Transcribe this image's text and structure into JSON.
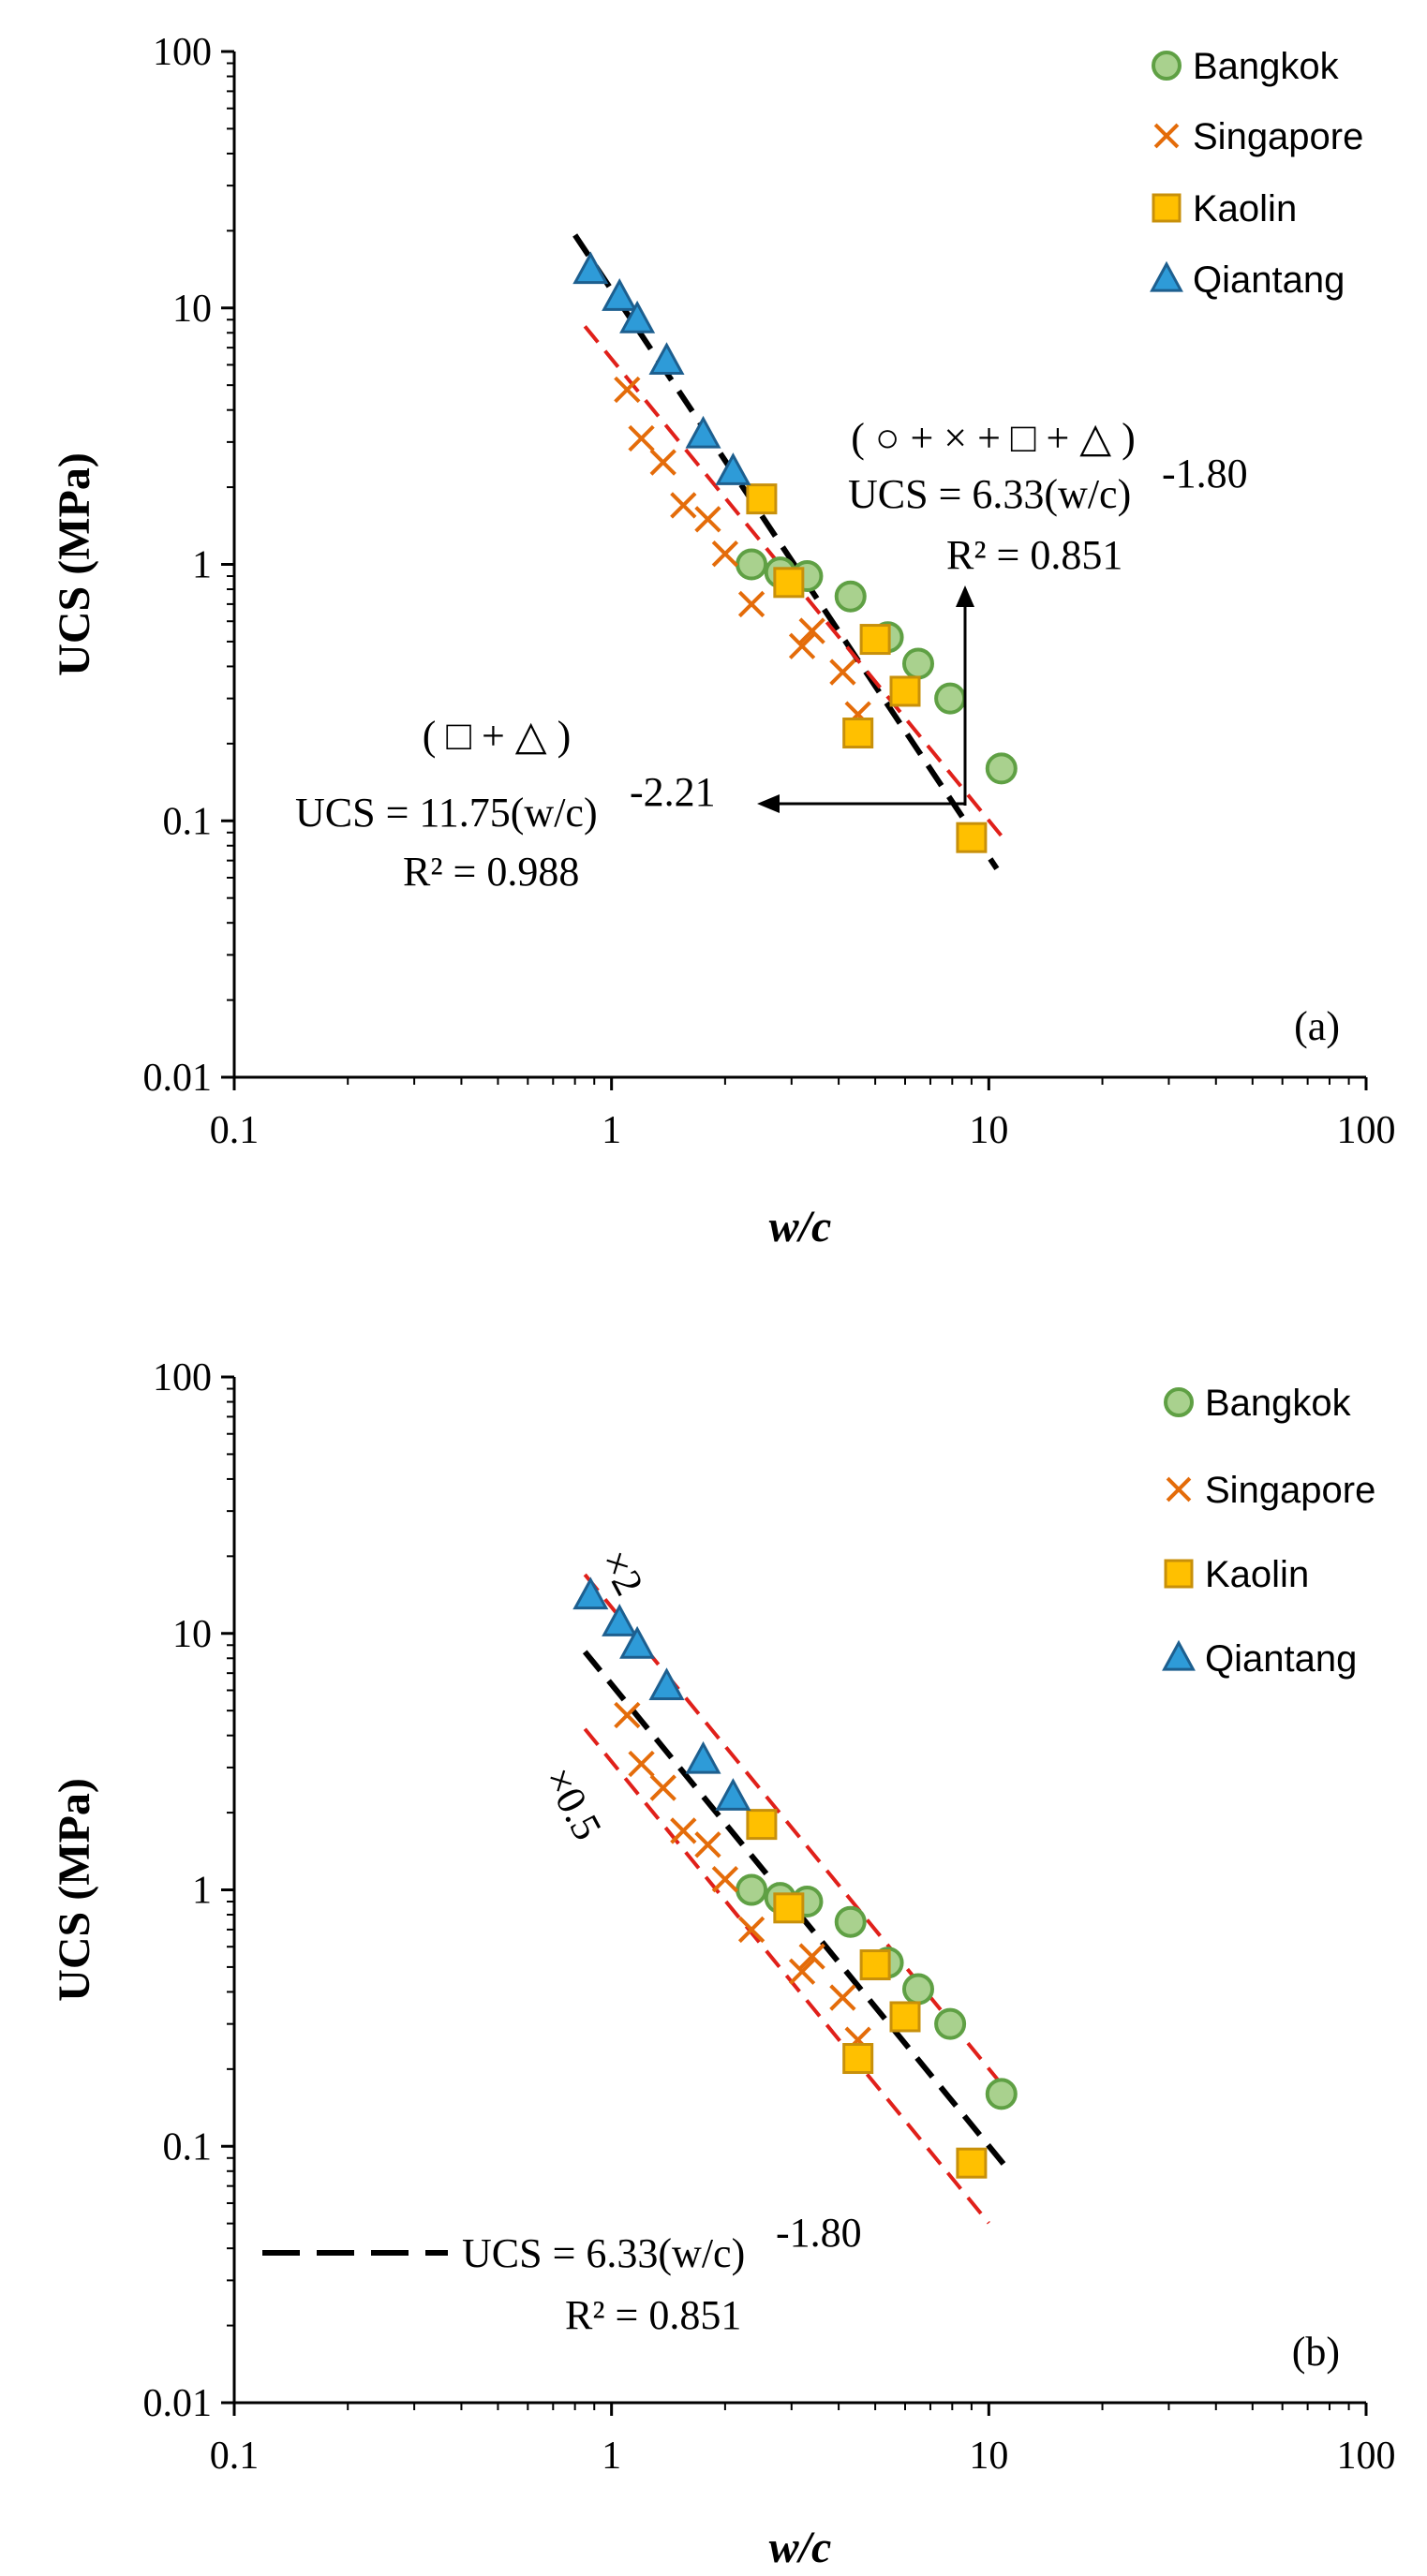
{
  "series_style": {
    "Bangkok": {
      "marker": "circle",
      "fill": "#a9d18e",
      "stroke": "#5fa044"
    },
    "Singapore": {
      "marker": "cross",
      "fill": "none",
      "stroke": "#e46c0a"
    },
    "Kaolin": {
      "marker": "square",
      "fill": "#ffc000",
      "stroke": "#c8900a"
    },
    "Qiantang": {
      "marker": "triangle",
      "fill": "#2e9bd8",
      "stroke": "#1d5f8f"
    }
  },
  "line_colors": {
    "fit": "#000000",
    "bound": "#e0201a"
  },
  "chart_data": [
    {
      "type": "scatter",
      "panel_label": "(a)",
      "x_scale": "log",
      "y_scale": "log",
      "xlim": [
        0.1,
        100
      ],
      "ylim": [
        0.01,
        100
      ],
      "xlabel": "w/c",
      "ylabel": "UCS (MPa)",
      "x_ticks": [
        "0.1",
        "1",
        "10",
        "100"
      ],
      "y_ticks": [
        "0.01",
        "0.1",
        "1",
        "10",
        "100"
      ],
      "grid": false,
      "legend_position": "top-right",
      "legend": [
        "Bangkok",
        "Singapore",
        "Kaolin",
        "Qiantang"
      ],
      "series": [
        {
          "name": "Bangkok",
          "points": [
            [
              2.35,
              1.0
            ],
            [
              2.8,
              0.93
            ],
            [
              3.3,
              0.9
            ],
            [
              4.3,
              0.75
            ],
            [
              5.4,
              0.52
            ],
            [
              6.5,
              0.41
            ],
            [
              7.9,
              0.3
            ],
            [
              10.8,
              0.16
            ]
          ]
        },
        {
          "name": "Singapore",
          "points": [
            [
              1.1,
              4.8
            ],
            [
              1.2,
              3.1
            ],
            [
              1.37,
              2.5
            ],
            [
              1.55,
              1.7
            ],
            [
              1.8,
              1.5
            ],
            [
              2.0,
              1.1
            ],
            [
              2.35,
              0.7
            ],
            [
              3.2,
              0.48
            ],
            [
              3.4,
              0.55
            ],
            [
              4.1,
              0.38
            ],
            [
              4.5,
              0.26
            ]
          ]
        },
        {
          "name": "Kaolin",
          "points": [
            [
              2.5,
              1.8
            ],
            [
              2.95,
              0.85
            ],
            [
              5.0,
              0.51
            ],
            [
              6.0,
              0.32
            ],
            [
              4.5,
              0.22
            ],
            [
              9.0,
              0.086
            ]
          ]
        },
        {
          "name": "Qiantang",
          "points": [
            [
              0.88,
              14.0
            ],
            [
              1.05,
              11.0
            ],
            [
              1.17,
              9.0
            ],
            [
              1.4,
              6.2
            ],
            [
              1.75,
              3.2
            ],
            [
              2.1,
              2.3
            ]
          ]
        }
      ],
      "fit_lines": [
        {
          "style": "black-dashed",
          "coef": 11.75,
          "exp": -2.21,
          "x_range": [
            0.8,
            10.5
          ]
        },
        {
          "style": "red-dashed",
          "coef": 6.33,
          "exp": -1.8,
          "x_range": [
            0.85,
            11.0
          ]
        }
      ],
      "annotations": {
        "combined_fit": {
          "legend_row": "( ○ + × + □ + △ )",
          "equation_main": "UCS = 6.33(w/c)",
          "equation_exp": "-1.80",
          "r2_value": "R² = 0.851"
        },
        "kaolin_qiantang_fit": {
          "legend_row": "( □ + △ )",
          "equation_main": "UCS = 11.75(w/c)",
          "equation_exp": "-2.21",
          "r2_value": "R² = 0.988"
        }
      }
    },
    {
      "type": "scatter",
      "panel_label": "(b)",
      "x_scale": "log",
      "y_scale": "log",
      "xlim": [
        0.1,
        100
      ],
      "ylim": [
        0.01,
        100
      ],
      "xlabel": "w/c",
      "ylabel": "UCS (MPa)",
      "x_ticks": [
        "0.1",
        "1",
        "10",
        "100"
      ],
      "y_ticks": [
        "0.01",
        "0.1",
        "1",
        "10",
        "100"
      ],
      "grid": false,
      "legend_position": "top-right",
      "legend": [
        "Bangkok",
        "Singapore",
        "Kaolin",
        "Qiantang"
      ],
      "series": [
        {
          "name": "Bangkok",
          "points": [
            [
              2.35,
              1.0
            ],
            [
              2.8,
              0.93
            ],
            [
              3.3,
              0.9
            ],
            [
              4.3,
              0.75
            ],
            [
              5.4,
              0.52
            ],
            [
              6.5,
              0.41
            ],
            [
              7.9,
              0.3
            ],
            [
              10.8,
              0.16
            ]
          ]
        },
        {
          "name": "Singapore",
          "points": [
            [
              1.1,
              4.8
            ],
            [
              1.2,
              3.1
            ],
            [
              1.37,
              2.5
            ],
            [
              1.55,
              1.7
            ],
            [
              1.8,
              1.5
            ],
            [
              2.0,
              1.1
            ],
            [
              2.35,
              0.7
            ],
            [
              3.2,
              0.48
            ],
            [
              3.4,
              0.55
            ],
            [
              4.1,
              0.38
            ],
            [
              4.5,
              0.26
            ]
          ]
        },
        {
          "name": "Kaolin",
          "points": [
            [
              2.5,
              1.8
            ],
            [
              2.95,
              0.85
            ],
            [
              5.0,
              0.51
            ],
            [
              6.0,
              0.32
            ],
            [
              4.5,
              0.22
            ],
            [
              9.0,
              0.086
            ]
          ]
        },
        {
          "name": "Qiantang",
          "points": [
            [
              0.88,
              14.0
            ],
            [
              1.05,
              11.0
            ],
            [
              1.17,
              9.0
            ],
            [
              1.4,
              6.2
            ],
            [
              1.75,
              3.2
            ],
            [
              2.1,
              2.3
            ]
          ]
        }
      ],
      "fit_lines": [
        {
          "style": "black-dashed",
          "coef": 6.33,
          "exp": -1.8,
          "x_range": [
            0.85,
            11.0
          ]
        },
        {
          "style": "red-dashed",
          "coef": 12.66,
          "exp": -1.8,
          "x_range": [
            0.85,
            11.0
          ]
        },
        {
          "style": "red-dashed",
          "coef": 3.165,
          "exp": -1.8,
          "x_range": [
            0.85,
            10.0
          ]
        }
      ],
      "annotations": {
        "upper_bound_label": "×2",
        "lower_bound_label": "×0.5",
        "fit_equation_main": "UCS = 6.33(w/c)",
        "fit_equation_exp": "-1.80",
        "fit_r2": "R² = 0.851"
      }
    }
  ]
}
